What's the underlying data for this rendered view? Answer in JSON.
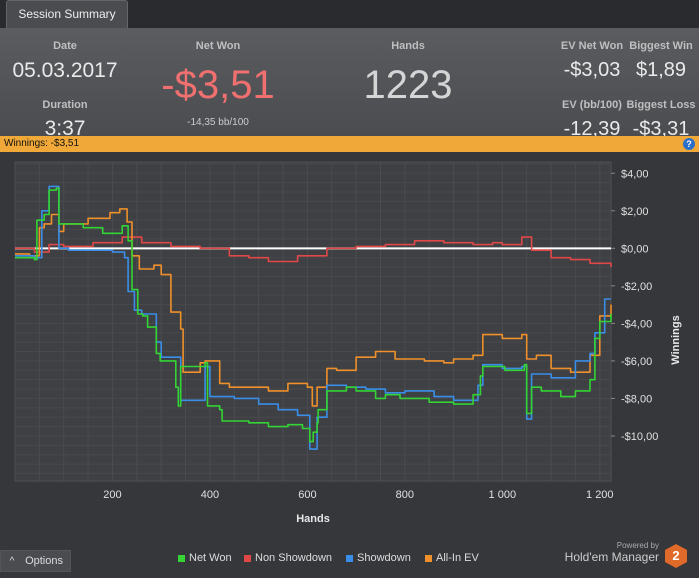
{
  "tab": {
    "label": "Session Summary"
  },
  "summary": {
    "date_label": "Date",
    "date_value": "05.03.2017",
    "duration_label": "Duration",
    "duration_value": "3:37",
    "netwon_label": "Net Won",
    "netwon_value": "-$3,51",
    "netwon_sub": "-14,35 bb/100",
    "hands_label": "Hands",
    "hands_value": "1223",
    "ev_net_won_label": "EV Net Won",
    "ev_net_won_value": "-$3,03",
    "biggest_win_label": "Biggest Win",
    "biggest_win_value": "$1,89",
    "ev_bb_label": "EV (bb/100)",
    "ev_bb_value": "-12,39",
    "biggest_loss_label": "Biggest Loss",
    "biggest_loss_value": "-$3,31"
  },
  "winnings_bar": {
    "text": "Winnings:  -$3,51",
    "help_icon": "?"
  },
  "options": {
    "label": "Options",
    "icon": "^"
  },
  "brand": {
    "powered": "Powered by",
    "name": "Hold'em Manager",
    "logo": "2"
  },
  "colors": {
    "net_won": "#33d433",
    "non_showdown": "#e04848",
    "showdown": "#3a8ee8",
    "allin_ev": "#f0902a",
    "negative_value": "#f07070"
  },
  "chart_data": {
    "type": "line",
    "xlabel": "Hands",
    "ylabel": "Winnings",
    "xlim": [
      0,
      1223
    ],
    "ylim": [
      -12.4,
      4.6
    ],
    "x_ticks": [
      200,
      400,
      600,
      800,
      1000,
      1200
    ],
    "x_tick_labels": [
      "200",
      "400",
      "600",
      "800",
      "1 000",
      "1 200"
    ],
    "y_ticks": [
      4,
      2,
      0,
      -2,
      -4,
      -6,
      -8,
      -10
    ],
    "y_tick_labels": [
      "$4,00",
      "$2,00",
      "$0,00",
      "-$2,00",
      "-$4,00",
      "-$6,00",
      "-$8,00",
      "-$10,00"
    ],
    "grid": true,
    "legend_position": "bottom",
    "series": [
      {
        "name": "Net Won",
        "color": "#33d433",
        "x": [
          0,
          40,
          45,
          60,
          70,
          85,
          90,
          140,
          180,
          220,
          232,
          240,
          252,
          262,
          272,
          290,
          298,
          330,
          335,
          340,
          390,
          395,
          420,
          425,
          440,
          480,
          520,
          560,
          590,
          605,
          612,
          620,
          622,
          640,
          680,
          700,
          740,
          760,
          790,
          850,
          900,
          940,
          955,
          960,
          1005,
          1045,
          1050,
          1060,
          1080,
          1120,
          1150,
          1180,
          1190,
          1200,
          1223
        ],
        "y": [
          -0.5,
          -0.6,
          1.5,
          1.8,
          3.1,
          3.2,
          1.3,
          1.1,
          0.8,
          1.2,
          0.4,
          -2.2,
          -3.5,
          -3.6,
          -4.2,
          -5.6,
          -6.0,
          -7.4,
          -8.4,
          -6.3,
          -6.1,
          -8.4,
          -8.6,
          -9.2,
          -9.2,
          -9.3,
          -9.5,
          -9.4,
          -9.6,
          -10.3,
          -9.8,
          -9.3,
          -8.6,
          -7.6,
          -7.4,
          -7.6,
          -8.0,
          -7.8,
          -8.0,
          -8.2,
          -8.3,
          -7.8,
          -6.8,
          -6.3,
          -6.5,
          -6.2,
          -8.8,
          -7.4,
          -7.6,
          -7.9,
          -7.6,
          -7.0,
          -4.8,
          -3.9,
          -3.5
        ]
      },
      {
        "name": "Non Showdown",
        "color": "#e04848",
        "x": [
          0,
          40,
          70,
          100,
          160,
          220,
          260,
          320,
          380,
          440,
          480,
          520,
          580,
          640,
          700,
          760,
          820,
          880,
          940,
          980,
          1000,
          1040,
          1060,
          1100,
          1140,
          1180,
          1223
        ],
        "y": [
          0.0,
          -0.2,
          0.2,
          0.1,
          0.3,
          0.6,
          0.3,
          0.1,
          0.0,
          -0.4,
          -0.5,
          -0.7,
          -0.4,
          0.0,
          0.1,
          0.2,
          0.4,
          0.3,
          0.2,
          0.3,
          0.2,
          0.6,
          -0.1,
          -0.5,
          -0.6,
          -0.8,
          -1.0
        ]
      },
      {
        "name": "Showdown",
        "color": "#3a8ee8",
        "x": [
          0,
          40,
          55,
          70,
          90,
          110,
          200,
          225,
          232,
          245,
          260,
          290,
          300,
          340,
          390,
          400,
          450,
          500,
          540,
          580,
          605,
          620,
          640,
          680,
          720,
          760,
          800,
          860,
          900,
          950,
          960,
          1000,
          1040,
          1050,
          1060,
          1100,
          1150,
          1180,
          1190,
          1210,
          1223
        ],
        "y": [
          -0.4,
          -0.5,
          2.0,
          3.3,
          0.0,
          -0.1,
          -0.2,
          -0.5,
          -2.3,
          -3.3,
          -3.5,
          -5.0,
          -5.8,
          -8.1,
          -6.3,
          -7.9,
          -8.0,
          -8.3,
          -8.6,
          -8.9,
          -10.7,
          -9.0,
          -7.3,
          -7.4,
          -7.5,
          -7.7,
          -7.6,
          -7.9,
          -8.1,
          -7.3,
          -6.2,
          -6.4,
          -6.3,
          -9.1,
          -6.7,
          -6.9,
          -6.0,
          -5.6,
          -4.5,
          -2.7,
          -2.7
        ]
      },
      {
        "name": "All-In EV",
        "color": "#f0902a",
        "x": [
          0,
          30,
          50,
          60,
          75,
          90,
          100,
          150,
          195,
          215,
          230,
          240,
          255,
          270,
          285,
          300,
          320,
          340,
          345,
          380,
          390,
          420,
          440,
          480,
          520,
          560,
          600,
          610,
          620,
          640,
          660,
          700,
          740,
          780,
          840,
          880,
          900,
          940,
          960,
          1000,
          1040,
          1050,
          1070,
          1100,
          1140,
          1180,
          1200,
          1223
        ],
        "y": [
          -0.3,
          -0.4,
          1.1,
          1.3,
          1.8,
          0.9,
          1.3,
          1.6,
          1.9,
          2.1,
          1.4,
          -0.4,
          -1.1,
          -1.1,
          -0.9,
          -1.4,
          -3.4,
          -4.3,
          -6.6,
          -6.1,
          -6.0,
          -7.2,
          -7.4,
          -7.4,
          -7.6,
          -7.2,
          -7.4,
          -8.4,
          -7.4,
          -6.4,
          -6.5,
          -5.8,
          -5.5,
          -5.9,
          -6.0,
          -6.1,
          -5.9,
          -5.7,
          -4.6,
          -4.8,
          -4.6,
          -5.9,
          -5.7,
          -6.4,
          -6.6,
          -5.7,
          -3.6,
          -3.0
        ]
      }
    ]
  }
}
